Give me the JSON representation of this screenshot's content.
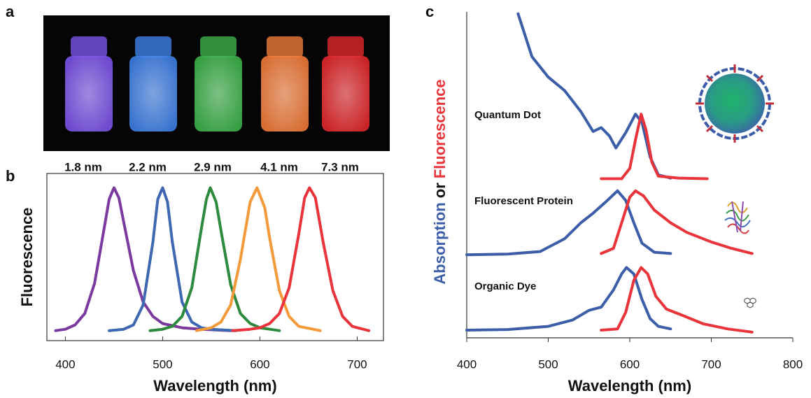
{
  "chart_data": [
    {
      "type": "image",
      "label": "a",
      "captions": [
        "1.8 nm",
        "2.2 nm",
        "2.9 nm",
        "4.1 nm",
        "7.3 nm"
      ],
      "colors": [
        "#7a52e6",
        "#3f7fe6",
        "#3db04a",
        "#f07a3a",
        "#e0282c"
      ]
    },
    {
      "type": "line",
      "label": "b",
      "xlabel": "Wavelength (nm)",
      "ylabel": "Fluorescence",
      "xlim": [
        381,
        727
      ],
      "ylim": [
        -0.07,
        1.1
      ],
      "xticks": [
        400,
        500,
        600,
        700
      ],
      "series": [
        {
          "color": "#7b3a9e",
          "x": [
            390,
            400,
            410,
            420,
            430,
            440,
            445,
            450,
            455,
            460,
            470,
            480,
            490,
            500,
            520,
            540,
            570
          ],
          "values": [
            0,
            0.01,
            0.04,
            0.12,
            0.33,
            0.72,
            0.92,
            1,
            0.93,
            0.76,
            0.42,
            0.2,
            0.1,
            0.05,
            0.02,
            0.01,
            0
          ]
        },
        {
          "color": "#3f68b2",
          "x": [
            445,
            460,
            470,
            480,
            490,
            495,
            500,
            505,
            510,
            520,
            530,
            540,
            550,
            575
          ],
          "values": [
            0,
            0.01,
            0.04,
            0.18,
            0.62,
            0.92,
            1,
            0.9,
            0.62,
            0.2,
            0.06,
            0.02,
            0.01,
            0
          ]
        },
        {
          "color": "#2e8a3c",
          "x": [
            487,
            500,
            510,
            520,
            530,
            540,
            545,
            549,
            555,
            560,
            570,
            580,
            590,
            600,
            620
          ],
          "values": [
            0,
            0.01,
            0.03,
            0.1,
            0.3,
            0.72,
            0.92,
            1,
            0.9,
            0.7,
            0.32,
            0.12,
            0.05,
            0.02,
            0
          ]
        },
        {
          "color": "#f39a3a",
          "x": [
            535,
            550,
            560,
            570,
            580,
            590,
            597,
            605,
            610,
            620,
            630,
            640,
            662
          ],
          "values": [
            0,
            0.02,
            0.06,
            0.18,
            0.5,
            0.9,
            1,
            0.86,
            0.65,
            0.28,
            0.1,
            0.03,
            0
          ]
        },
        {
          "color": "#e8343a",
          "x": [
            572,
            590,
            600,
            610,
            620,
            630,
            640,
            646,
            651,
            657,
            665,
            675,
            685,
            695,
            712
          ],
          "values": [
            0,
            0.01,
            0.02,
            0.05,
            0.12,
            0.3,
            0.68,
            0.93,
            1,
            0.93,
            0.62,
            0.28,
            0.1,
            0.03,
            0
          ]
        }
      ]
    },
    {
      "type": "stacked-spectra",
      "label": "c",
      "xlabel": "Wavelength (nm)",
      "ylabel": [
        {
          "text": "Absorption",
          "color": "#3c5ea8"
        },
        {
          "text": "or"
        },
        {
          "text": "Fluorescence",
          "color": "#e8343a"
        }
      ],
      "xlim": [
        400,
        800
      ],
      "ylim": [
        0.5,
        5.6
      ],
      "xticks": [
        400,
        500,
        600,
        700,
        800
      ],
      "absorption_color": "#3c5ea8",
      "fluorescence_color": "#e8343a",
      "samples": [
        {
          "label": "Quantum Dot",
          "absorption": {
            "x": [
              463,
              480,
              500,
              520,
              540,
              555,
              565,
              575,
              583,
              595,
              607,
              615,
              625,
              635,
              650
            ],
            "values": [
              5.57,
              4.9,
              4.58,
              4.37,
              4.04,
              3.73,
              3.79,
              3.66,
              3.47,
              3.71,
              4.0,
              3.87,
              3.33,
              3.05,
              3.0
            ]
          },
          "fluorescence": {
            "x": [
              565,
              590,
              600,
              607,
              614,
              620,
              627,
              635,
              660,
              695
            ],
            "values": [
              2.99,
              2.99,
              3.15,
              3.6,
              4.0,
              3.75,
              3.25,
              3.03,
              3.0,
              2.99
            ]
          }
        },
        {
          "label": "Fluorescent Protein",
          "absorption": {
            "x": [
              400,
              450,
              490,
              520,
              540,
              555,
              570,
              585,
              595,
              605,
              615,
              630,
              650
            ],
            "values": [
              1.8,
              1.81,
              1.85,
              2.05,
              2.3,
              2.45,
              2.62,
              2.8,
              2.65,
              2.3,
              1.98,
              1.84,
              1.82
            ]
          },
          "fluorescence": {
            "x": [
              565,
              580,
              590,
              600,
              607,
              617,
              630,
              650,
              670,
              700,
              725,
              750
            ],
            "values": [
              1.82,
              1.9,
              2.3,
              2.7,
              2.8,
              2.72,
              2.5,
              2.3,
              2.15,
              2.0,
              1.9,
              1.82
            ]
          }
        },
        {
          "label": "Organic Dye",
          "absorption": {
            "x": [
              400,
              450,
              500,
              530,
              550,
              565,
              580,
              590,
              596,
              605,
              615,
              625,
              635,
              650
            ],
            "values": [
              0.62,
              0.63,
              0.68,
              0.78,
              0.93,
              0.98,
              1.25,
              1.5,
              1.6,
              1.5,
              1.1,
              0.8,
              0.68,
              0.64
            ]
          },
          "fluorescence": {
            "x": [
              565,
              585,
              595,
              605,
              614,
              622,
              632,
              645,
              665,
              690,
              720,
              750
            ],
            "values": [
              0.62,
              0.64,
              0.9,
              1.4,
              1.6,
              1.5,
              1.15,
              0.95,
              0.85,
              0.72,
              0.64,
              0.59
            ]
          }
        }
      ]
    }
  ]
}
